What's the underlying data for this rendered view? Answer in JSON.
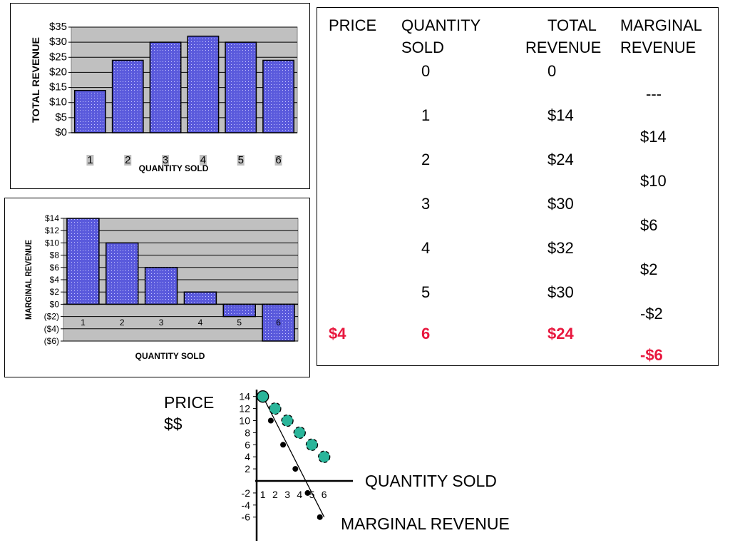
{
  "chart_data": [
    {
      "type": "bar",
      "categories": [
        "1",
        "2",
        "3",
        "4",
        "5",
        "6"
      ],
      "values": [
        14,
        24,
        30,
        32,
        30,
        24
      ],
      "xlabel": "QUANTITY SOLD",
      "ylabel": "TOTAL REVENUE",
      "ylim": [
        0,
        35
      ],
      "yticks": [
        "$0",
        "$5",
        "$10",
        "$15",
        "$20",
        "$25",
        "$30",
        "$35"
      ],
      "grid": true,
      "bar_color": "#5a5adc",
      "plot_bg": "#c0c0c0"
    },
    {
      "type": "bar",
      "categories": [
        "1",
        "2",
        "3",
        "4",
        "5",
        "6"
      ],
      "values": [
        14,
        10,
        6,
        2,
        -2,
        -6
      ],
      "xlabel": "QUANTITY SOLD",
      "ylabel": "MARGINAL REVENUE",
      "ylim": [
        -6,
        14
      ],
      "yticks": [
        "($6)",
        "($4)",
        "($2)",
        "$0",
        "$2",
        "$4",
        "$6",
        "$8",
        "$10",
        "$12",
        "$14"
      ],
      "grid": true,
      "bar_color": "#5a5adc",
      "plot_bg": "#c0c0c0"
    },
    {
      "type": "scatter",
      "series": [
        {
          "name": "",
          "x": [
            1,
            2,
            3,
            4,
            5,
            6
          ],
          "y": [
            14,
            12,
            10,
            8,
            6,
            4
          ],
          "color": "#2ab59a"
        },
        {
          "name": "",
          "x": [
            2,
            3,
            4,
            5,
            6
          ],
          "y": [
            10,
            6,
            2,
            -2,
            -6
          ],
          "color": "#000000"
        }
      ],
      "xticks": [
        "1",
        "2",
        "3",
        "4",
        "5",
        "6"
      ],
      "yticks": [
        "14",
        "12",
        "10",
        "8",
        "6",
        "4",
        "2",
        "-2",
        "-4",
        "-6"
      ],
      "xlabel": "QUANTITY SOLD",
      "ylabel": "PRICE $$",
      "annotation": "MARGINAL REVENUE"
    }
  ],
  "table": {
    "headers": {
      "price": "PRICE",
      "quantity_1": "QUANTITY",
      "quantity_2": "SOLD",
      "total_1": "TOTAL",
      "total_2": "REVENUE",
      "marginal_1": "MARGINAL",
      "marginal_2": "REVENUE"
    },
    "quantity": [
      "0",
      "1",
      "2",
      "3",
      "4",
      "5",
      "6"
    ],
    "total_revenue": [
      "0",
      "$14",
      "$24",
      "$30",
      "$32",
      "$30",
      "$24"
    ],
    "marginal_revenue": [
      "---",
      "$14",
      "$10",
      "$6",
      "$2",
      "-$2",
      "-$6"
    ],
    "highlight_price": "$4",
    "highlight_color": "#e8173e"
  }
}
